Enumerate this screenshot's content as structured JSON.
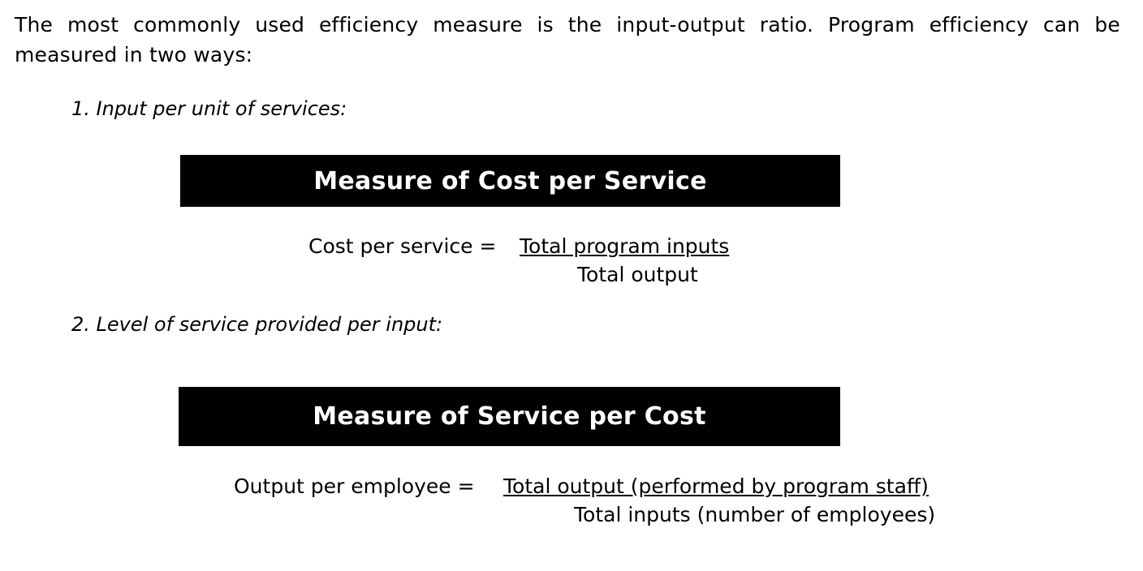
{
  "intro": {
    "text": "The most commonly used efficiency measure is the input-output ratio. Program efficiency can be measured in two ways:"
  },
  "items": [
    {
      "heading": "1. Input per unit of services:",
      "banner": "Measure of Cost per Service",
      "formula": {
        "label": "Cost per service =",
        "numerator": "Total program inputs",
        "denominator": "Total output"
      }
    },
    {
      "heading": "2. Level of service provided per input:",
      "banner": "Measure of Service per Cost",
      "formula": {
        "label": "Output per employee =",
        "numerator": "Total output (performed by program staff)",
        "denominator": "Total inputs (number of employees)"
      }
    }
  ]
}
